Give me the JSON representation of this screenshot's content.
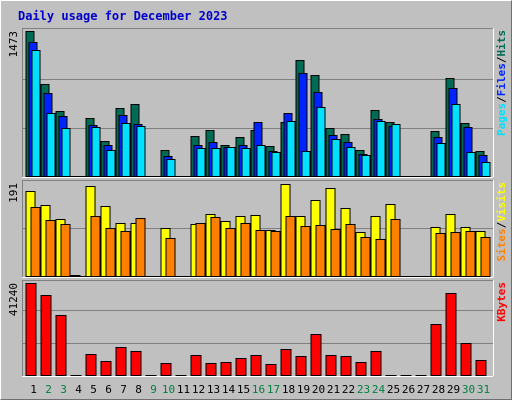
{
  "title": "Daily usage for December 2023",
  "chart_data": {
    "type": "bar",
    "title": "Daily usage for December 2023",
    "categories": [
      "1",
      "2",
      "3",
      "4",
      "5",
      "6",
      "7",
      "8",
      "9",
      "10",
      "11",
      "12",
      "13",
      "14",
      "15",
      "16",
      "17",
      "18",
      "19",
      "20",
      "21",
      "22",
      "23",
      "24",
      "25",
      "26",
      "27",
      "28",
      "29",
      "30",
      "31"
    ],
    "weekend_days": [
      "2",
      "3",
      "9",
      "10",
      "16",
      "17",
      "23",
      "24",
      "30",
      "31"
    ],
    "colors": {
      "hits": "#006b54",
      "files": "#0024ff",
      "pages": "#00e0ff",
      "visits": "#ffff00",
      "sites": "#ff8000",
      "kbytes": "#ff0000",
      "weekday_label": "#000000",
      "weekend_label": "#008040"
    },
    "panels": [
      {
        "id": "hits",
        "ymax": 1473,
        "ymax_label": "1473",
        "legend": [
          {
            "text": "Pages",
            "color": "#00e0ff"
          },
          {
            "text": "/",
            "color": "#000000"
          },
          {
            "text": "Files",
            "color": "#0024ff"
          },
          {
            "text": "/",
            "color": "#000000"
          },
          {
            "text": "Hits",
            "color": "#006b54"
          }
        ],
        "series": [
          {
            "name": "Hits",
            "color": "#006b54",
            "values": [
              1473,
              934,
              665,
              0,
              596,
              364,
              694,
              740,
              0,
              277,
              0,
              415,
              474,
              326,
              405,
              476,
              315,
              551,
              1178,
              1027,
              492,
              433,
              274,
              675,
              553,
              0,
              0,
              464,
              999,
              544,
              266
            ]
          },
          {
            "name": "Files",
            "color": "#0024ff",
            "values": [
              1364,
              849,
              614,
              0,
              525,
              327,
              629,
              535,
              0,
              215,
              0,
              323,
              350,
              303,
              318,
              554,
              259,
              643,
              1052,
              860,
              421,
              349,
              237,
              586,
              513,
              0,
              0,
              402,
              895,
              503,
              218
            ]
          },
          {
            "name": "Pages",
            "color": "#00e0ff",
            "values": [
              1286,
              645,
              493,
              0,
              504,
              275,
              544,
              515,
              0,
              178,
              0,
              295,
              297,
              299,
              297,
              324,
              248,
              560,
              265,
              708,
              384,
              303,
              223,
              565,
              536,
              0,
              0,
              344,
              735,
              257,
              149
            ]
          }
        ]
      },
      {
        "id": "visits",
        "ymax": 191,
        "ymax_label": "191",
        "legend": [
          {
            "text": "Sites",
            "color": "#ff8000"
          },
          {
            "text": "/",
            "color": "#000000"
          },
          {
            "text": "Visits",
            "color": "#ffff00"
          }
        ],
        "series": [
          {
            "name": "Visits",
            "color": "#ffff00",
            "values": [
              174,
              146,
              117,
              3,
              185,
              145,
              110,
              109,
              0,
              100,
              0,
              108,
              128,
              113,
              124,
              126,
              96,
              188,
              123,
              157,
              180,
              141,
              92,
              124,
              149,
              0,
              0,
              101,
              127,
              102,
              94
            ]
          },
          {
            "name": "Sites",
            "color": "#ff8000",
            "values": [
              143,
              116,
              108,
              0,
              124,
              100,
              93,
              120,
              0,
              80,
              0,
              110,
              122,
              100,
              110,
              95,
              93,
              124,
              103,
              105,
              98,
              107,
              82,
              77,
              117,
              0,
              0,
              89,
              91,
              94,
              82
            ]
          }
        ]
      },
      {
        "id": "kbytes",
        "ymax": 41240,
        "ymax_label": "41240",
        "legend": [
          {
            "text": "KBytes",
            "color": "#ff0000"
          }
        ],
        "series": [
          {
            "name": "KBytes",
            "color": "#ff0000",
            "values": [
              41240,
              35839,
              27119,
              0,
              9618,
              6473,
              12685,
              10974,
              0,
              5720,
              0,
              9294,
              5972,
              6325,
              7896,
              9434,
              5130,
              12151,
              9081,
              18739,
              9289,
              9039,
              6028,
              11052,
              0,
              0,
              0,
              22996,
              36829,
              14781,
              6910
            ]
          }
        ]
      }
    ]
  }
}
